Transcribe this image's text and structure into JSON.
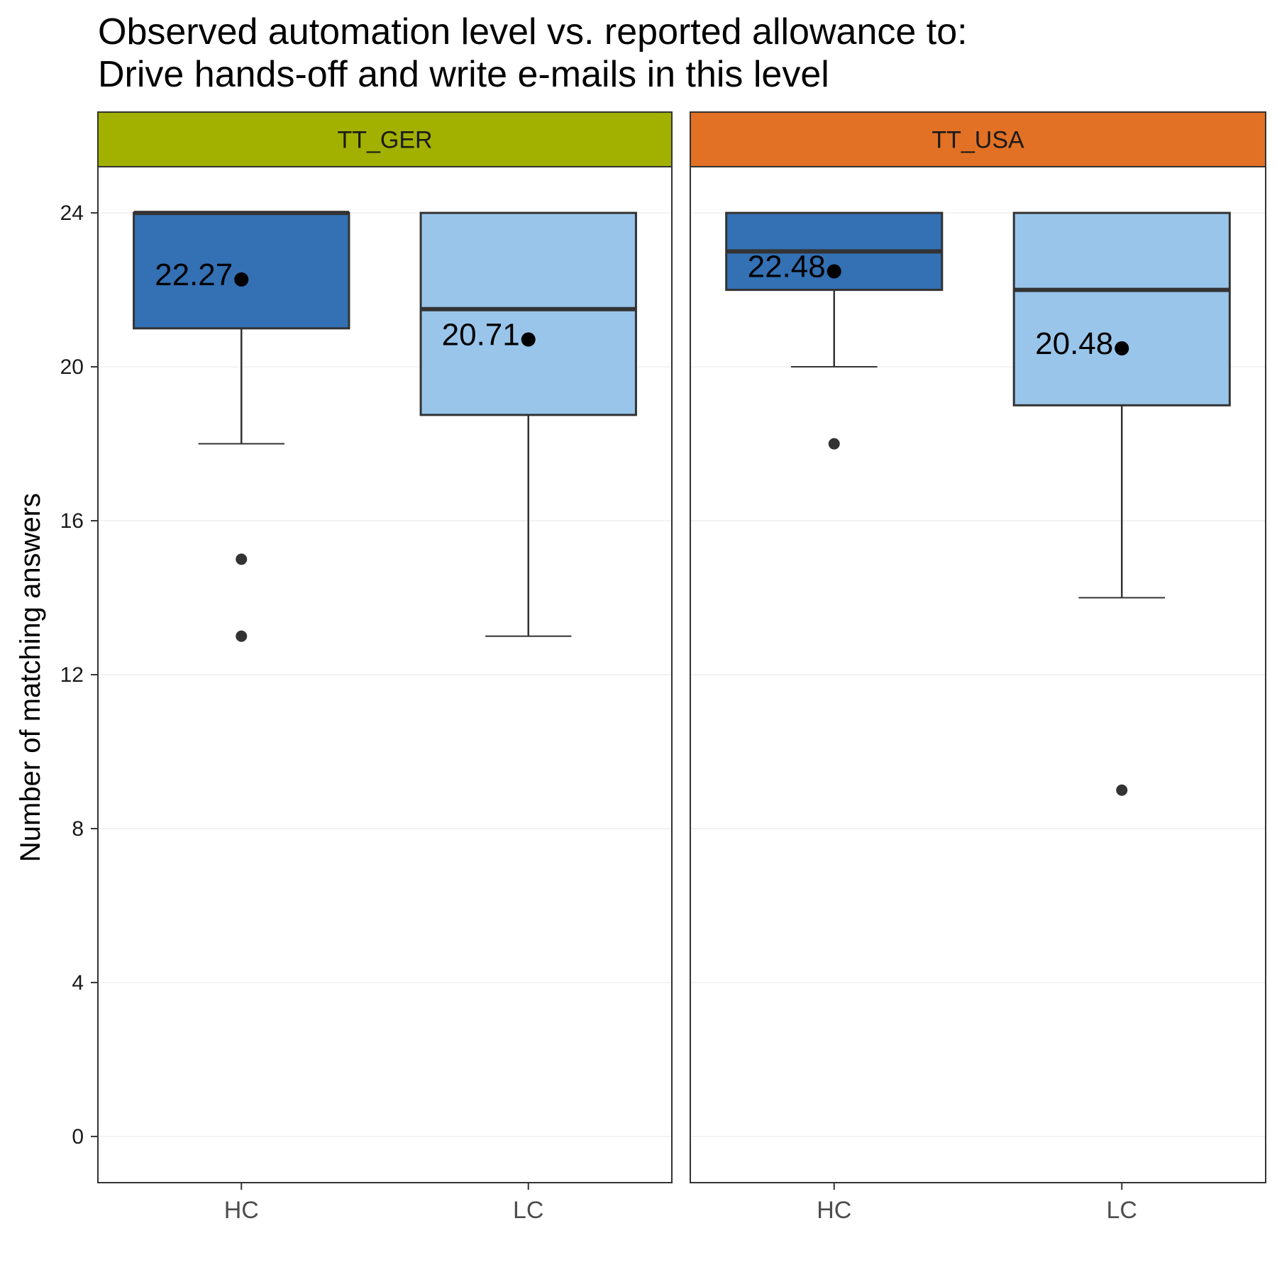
{
  "chart_data": {
    "type": "boxplot",
    "title_lines": [
      "Observed automation level vs. reported allowance to:",
      "Drive hands-off and write e-mails in this level"
    ],
    "ylabel": "Number of matching answers",
    "xlabel": "",
    "ylim": [
      -1.2,
      25.2
    ],
    "yticks": [
      0,
      4,
      8,
      12,
      16,
      20,
      24
    ],
    "categories": [
      "HC",
      "LC"
    ],
    "colors": {
      "HC": "#3370b4",
      "LC": "#99c5ea",
      "TT_GER": "#a2b000",
      "TT_USA": "#e27125"
    },
    "grid": true,
    "panels": [
      {
        "name": "TT_GER",
        "boxes": [
          {
            "category": "HC",
            "q1": 21,
            "median": 24,
            "q3": 24,
            "whisker_low": 18,
            "whisker_high": 24,
            "outliers": [
              15,
              13
            ],
            "mean": 22.27,
            "mean_label": "22.27"
          },
          {
            "category": "LC",
            "q1": 18.75,
            "median": 21.5,
            "q3": 24,
            "whisker_low": 13,
            "whisker_high": 24,
            "outliers": [],
            "mean": 20.71,
            "mean_label": "20.71"
          }
        ]
      },
      {
        "name": "TT_USA",
        "boxes": [
          {
            "category": "HC",
            "q1": 22,
            "median": 23,
            "q3": 24,
            "whisker_low": 20,
            "whisker_high": 24,
            "outliers": [
              18
            ],
            "mean": 22.48,
            "mean_label": "22.48"
          },
          {
            "category": "LC",
            "q1": 19,
            "median": 22,
            "q3": 24,
            "whisker_low": 14,
            "whisker_high": 24,
            "outliers": [
              9
            ],
            "mean": 20.48,
            "mean_label": "20.48"
          }
        ]
      }
    ]
  }
}
